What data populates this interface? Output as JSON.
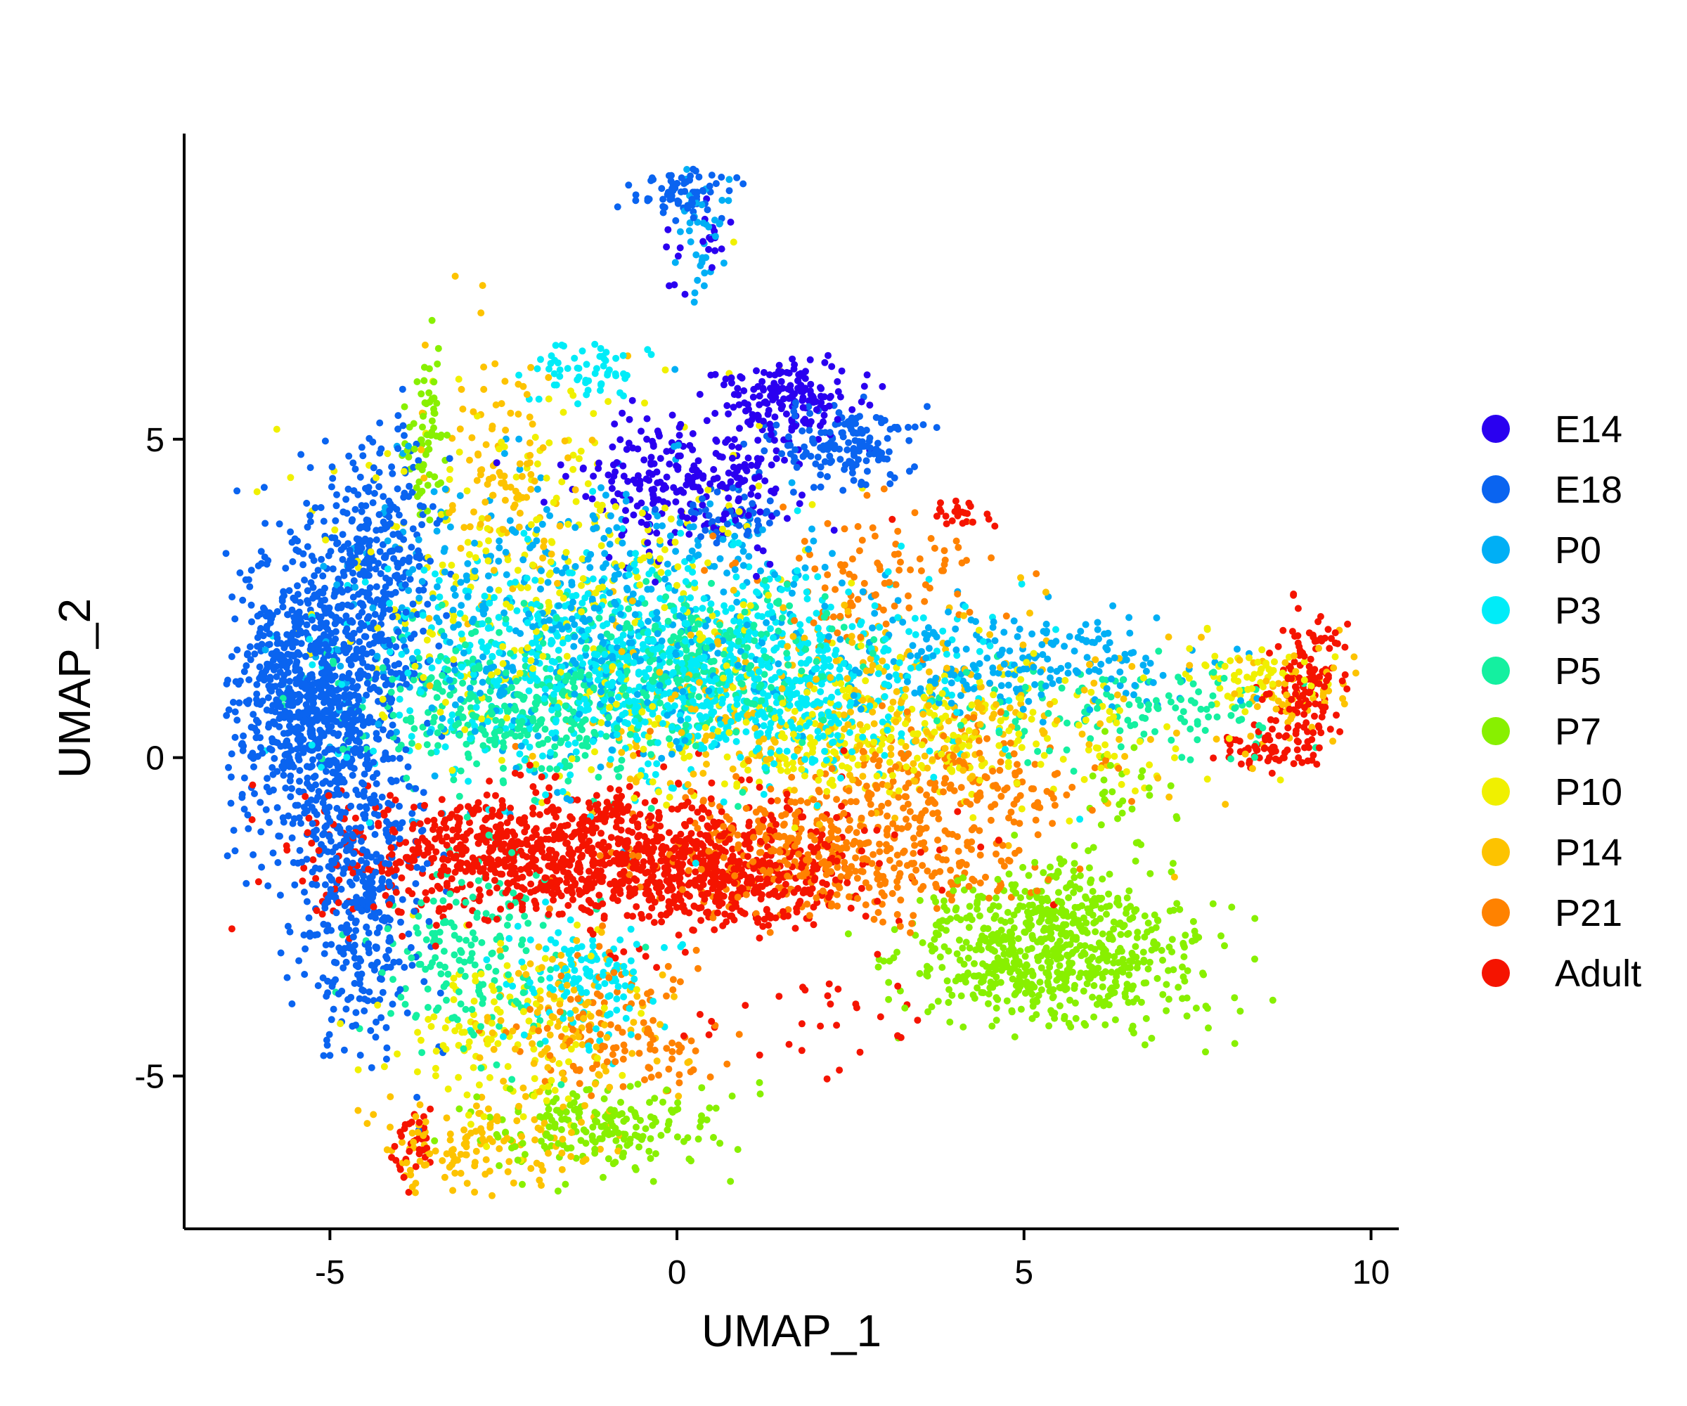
{
  "chart_data": {
    "type": "scatter",
    "title": "",
    "xlabel": "UMAP_1",
    "ylabel": "UMAP_2",
    "xlim": [
      -7.1,
      10.4
    ],
    "ylim": [
      -7.4,
      9.8
    ],
    "x_ticks": [
      {
        "value": -5,
        "label": "-5"
      },
      {
        "value": 0,
        "label": "0"
      },
      {
        "value": 5,
        "label": "5"
      },
      {
        "value": 10,
        "label": "10"
      }
    ],
    "y_ticks": [
      {
        "value": -5,
        "label": "-5"
      },
      {
        "value": 0,
        "label": "0"
      },
      {
        "value": 5,
        "label": "5"
      }
    ],
    "grid": false,
    "legend_position": "right",
    "series": [
      {
        "name": "E14",
        "color": "#2a00f0",
        "clusters": [
          {
            "cx": 0.2,
            "cy": 4.4,
            "sx": 0.8,
            "sy": 0.55,
            "n": 260
          },
          {
            "cx": 1.6,
            "cy": 5.7,
            "sx": 0.45,
            "sy": 0.3,
            "n": 160
          },
          {
            "cx": 0.3,
            "cy": 8.0,
            "sx": 0.3,
            "sy": 0.35,
            "n": 20
          }
        ]
      },
      {
        "name": "E18",
        "color": "#0a64f0",
        "clusters": [
          {
            "cx": -5.2,
            "cy": 1.0,
            "sx": 0.65,
            "sy": 1.2,
            "n": 1000
          },
          {
            "cx": -4.6,
            "cy": -2.3,
            "sx": 0.45,
            "sy": 1.2,
            "n": 380
          },
          {
            "cx": -4.3,
            "cy": 3.2,
            "sx": 0.4,
            "sy": 0.9,
            "n": 240
          },
          {
            "cx": 2.4,
            "cy": 4.9,
            "sx": 0.55,
            "sy": 0.3,
            "n": 160
          },
          {
            "cx": 0.2,
            "cy": 8.9,
            "sx": 0.35,
            "sy": 0.2,
            "n": 70
          },
          {
            "cx": 0.8,
            "cy": 3.8,
            "sx": 0.4,
            "sy": 0.2,
            "n": 50
          }
        ]
      },
      {
        "name": "P0",
        "color": "#00aff5",
        "clusters": [
          {
            "cx": -1.5,
            "cy": 2.2,
            "sx": 1.8,
            "sy": 1.1,
            "n": 560
          },
          {
            "cx": 5.0,
            "cy": 1.5,
            "sx": 1.3,
            "sy": 0.4,
            "n": 220
          },
          {
            "cx": 0.4,
            "cy": 8.2,
            "sx": 0.2,
            "sy": 0.5,
            "n": 40
          }
        ]
      },
      {
        "name": "P3",
        "color": "#00ecf8",
        "clusters": [
          {
            "cx": -0.5,
            "cy": 1.4,
            "sx": 2.0,
            "sy": 0.9,
            "n": 760
          },
          {
            "cx": 1.5,
            "cy": 0.9,
            "sx": 1.3,
            "sy": 0.5,
            "n": 280
          },
          {
            "cx": -1.4,
            "cy": -3.5,
            "sx": 0.6,
            "sy": 0.5,
            "n": 130
          },
          {
            "cx": -1.4,
            "cy": 6.1,
            "sx": 0.4,
            "sy": 0.25,
            "n": 60
          }
        ]
      },
      {
        "name": "P5",
        "color": "#14f0a0",
        "clusters": [
          {
            "cx": -2.0,
            "cy": 0.8,
            "sx": 1.4,
            "sy": 0.6,
            "n": 440
          },
          {
            "cx": 0.8,
            "cy": 1.7,
            "sx": 1.0,
            "sy": 0.5,
            "n": 200
          },
          {
            "cx": -3.0,
            "cy": -3.0,
            "sx": 0.7,
            "sy": 0.8,
            "n": 180
          },
          {
            "cx": 6.5,
            "cy": 0.7,
            "sx": 1.2,
            "sy": 0.4,
            "n": 130
          }
        ]
      },
      {
        "name": "P7",
        "color": "#88f000",
        "clusters": [
          {
            "cx": 5.4,
            "cy": -3.1,
            "sx": 1.0,
            "sy": 0.55,
            "n": 620
          },
          {
            "cx": 5.5,
            "cy": -2.2,
            "sx": 0.5,
            "sy": 0.35,
            "n": 110
          },
          {
            "cx": -1.2,
            "cy": -5.8,
            "sx": 1.0,
            "sy": 0.35,
            "n": 200
          },
          {
            "cx": -3.6,
            "cy": 5.0,
            "sx": 0.15,
            "sy": 0.6,
            "n": 70
          },
          {
            "cx": 6.3,
            "cy": -0.5,
            "sx": 0.35,
            "sy": 0.5,
            "n": 30
          }
        ]
      },
      {
        "name": "P10",
        "color": "#f0f000",
        "clusters": [
          {
            "cx": -1.8,
            "cy": 2.8,
            "sx": 1.6,
            "sy": 1.4,
            "n": 330
          },
          {
            "cx": 3.0,
            "cy": 0.3,
            "sx": 2.0,
            "sy": 0.6,
            "n": 350
          },
          {
            "cx": 8.3,
            "cy": 1.3,
            "sx": 0.6,
            "sy": 0.25,
            "n": 60
          },
          {
            "cx": -2.5,
            "cy": -4.3,
            "sx": 0.8,
            "sy": 0.8,
            "n": 130
          }
        ]
      },
      {
        "name": "P14",
        "color": "#fdc300",
        "clusters": [
          {
            "cx": 2.5,
            "cy": 0.7,
            "sx": 2.2,
            "sy": 0.8,
            "n": 320
          },
          {
            "cx": -2.4,
            "cy": 4.6,
            "sx": 0.6,
            "sy": 1.0,
            "n": 110
          },
          {
            "cx": 8.8,
            "cy": 1.0,
            "sx": 0.5,
            "sy": 0.4,
            "n": 60
          },
          {
            "cx": -2.8,
            "cy": -6.1,
            "sx": 0.8,
            "sy": 0.35,
            "n": 130
          },
          {
            "cx": -1.5,
            "cy": -4.2,
            "sx": 0.8,
            "sy": 0.6,
            "n": 110
          }
        ]
      },
      {
        "name": "P21",
        "color": "#ff8200",
        "clusters": [
          {
            "cx": 2.3,
            "cy": -1.5,
            "sx": 1.3,
            "sy": 0.55,
            "n": 460
          },
          {
            "cx": 4.0,
            "cy": -0.4,
            "sx": 1.0,
            "sy": 0.4,
            "n": 160
          },
          {
            "cx": -0.9,
            "cy": -4.3,
            "sx": 0.7,
            "sy": 0.5,
            "n": 120
          },
          {
            "cx": 2.9,
            "cy": 2.8,
            "sx": 0.9,
            "sy": 0.6,
            "n": 100
          }
        ]
      },
      {
        "name": "Adult",
        "color": "#f51400",
        "clusters": [
          {
            "cx": -1.6,
            "cy": -1.5,
            "sx": 1.8,
            "sy": 0.5,
            "n": 1050
          },
          {
            "cx": 0.6,
            "cy": -1.9,
            "sx": 0.9,
            "sy": 0.45,
            "n": 320
          },
          {
            "cx": 9.1,
            "cy": 1.1,
            "sx": 0.25,
            "sy": 0.55,
            "n": 150
          },
          {
            "cx": 8.4,
            "cy": 0.1,
            "sx": 0.3,
            "sy": 0.15,
            "n": 50
          },
          {
            "cx": -3.8,
            "cy": -6.2,
            "sx": 0.15,
            "sy": 0.3,
            "n": 35
          },
          {
            "cx": 4.1,
            "cy": 3.8,
            "sx": 0.3,
            "sy": 0.1,
            "n": 25
          },
          {
            "cx": 1.8,
            "cy": -4.4,
            "sx": 0.9,
            "sy": 0.6,
            "n": 30
          }
        ]
      }
    ]
  }
}
